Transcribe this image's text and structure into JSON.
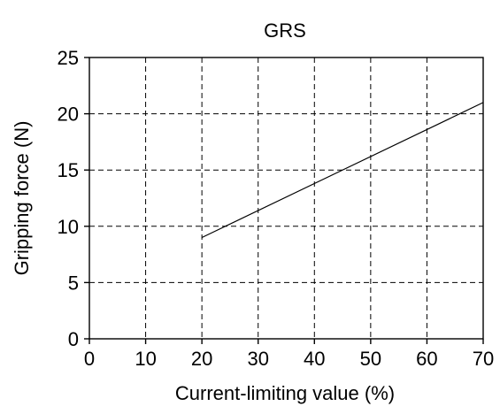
{
  "chart_data": {
    "type": "line",
    "title": "GRS",
    "xlabel": "Current-limiting value (%)",
    "ylabel": "Gripping force (N)",
    "xlim": [
      0,
      70
    ],
    "ylim": [
      0,
      25
    ],
    "xticks": [
      "0",
      "10",
      "20",
      "30",
      "40",
      "50",
      "60",
      "70"
    ],
    "yticks": [
      "0",
      "5",
      "10",
      "15",
      "20",
      "25"
    ],
    "grid": true,
    "series": [
      {
        "x": [
          20,
          70
        ],
        "y": [
          9,
          21
        ]
      }
    ]
  }
}
